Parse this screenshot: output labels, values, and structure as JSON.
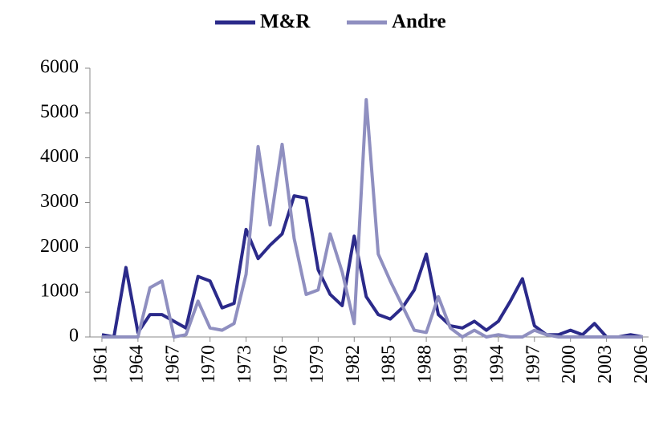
{
  "chart_data": {
    "type": "line",
    "x": [
      1961,
      1962,
      1963,
      1964,
      1965,
      1966,
      1967,
      1968,
      1969,
      1970,
      1971,
      1972,
      1973,
      1974,
      1975,
      1976,
      1977,
      1978,
      1979,
      1980,
      1981,
      1982,
      1983,
      1984,
      1985,
      1986,
      1987,
      1988,
      1989,
      1990,
      1991,
      1992,
      1993,
      1994,
      1995,
      1996,
      1997,
      1998,
      1999,
      2000,
      2001,
      2002,
      2003,
      2004,
      2005,
      2006
    ],
    "series": [
      {
        "name": "M&R",
        "color": "#2b2a8a",
        "values": [
          50,
          0,
          1550,
          100,
          500,
          500,
          350,
          200,
          1350,
          1250,
          650,
          750,
          2400,
          1750,
          2050,
          2300,
          3150,
          3100,
          1500,
          950,
          700,
          2250,
          900,
          500,
          400,
          650,
          1050,
          1850,
          500,
          250,
          200,
          350,
          150,
          350,
          800,
          1300,
          250,
          50,
          50,
          150,
          50,
          300,
          0,
          0,
          50,
          0
        ]
      },
      {
        "name": "Andre",
        "color": "#8f8fc0",
        "values": [
          0,
          0,
          0,
          0,
          1100,
          1250,
          0,
          50,
          800,
          200,
          150,
          300,
          1400,
          4250,
          2500,
          4300,
          2200,
          950,
          1050,
          2300,
          1450,
          300,
          5300,
          1850,
          1250,
          700,
          150,
          100,
          900,
          200,
          0,
          150,
          0,
          50,
          0,
          0,
          150,
          50,
          0,
          0,
          0,
          0,
          0,
          0,
          0,
          0
        ]
      }
    ],
    "xlim": [
      1960,
      2006.5
    ],
    "xticks": [
      1961,
      1964,
      1967,
      1970,
      1973,
      1976,
      1979,
      1982,
      1985,
      1988,
      1991,
      1994,
      1997,
      2000,
      2003,
      2006
    ],
    "ylim": [
      0,
      6000
    ],
    "yticks": [
      0,
      1000,
      2000,
      3000,
      4000,
      5000,
      6000
    ],
    "legend": "top"
  }
}
